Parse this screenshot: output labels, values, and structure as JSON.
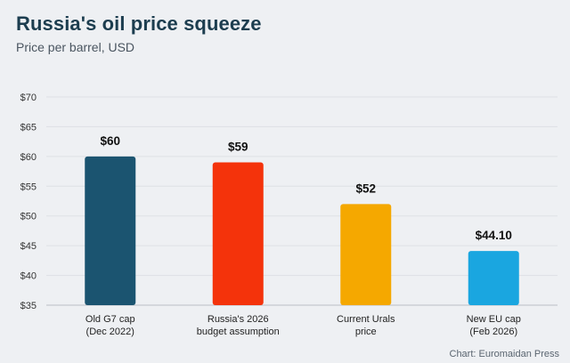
{
  "header": {
    "title": "Russia's oil price squeeze",
    "subtitle": "Price per barrel, USD"
  },
  "footer": {
    "source": "Chart: Euromaidan Press"
  },
  "chart_data": {
    "type": "bar",
    "title": "Russia's oil price squeeze",
    "subtitle": "Price per barrel, USD",
    "categories": [
      [
        "Old G7 cap",
        "(Dec 2022)"
      ],
      [
        "Russia's 2026",
        "budget assumption"
      ],
      [
        "Current Urals",
        "price"
      ],
      [
        "New EU cap",
        "(Feb 2026)"
      ]
    ],
    "values": [
      60,
      59,
      52,
      44.1
    ],
    "value_labels": [
      "$60",
      "$59",
      "$52",
      "$44.10"
    ],
    "bar_colors": [
      "#1b5470",
      "#f4330b",
      "#f5a800",
      "#1aa6e0"
    ],
    "ylim": [
      35,
      70
    ],
    "yticks": [
      35,
      40,
      45,
      50,
      55,
      60,
      65,
      70
    ],
    "ytick_labels": [
      "$35",
      "$40",
      "$45",
      "$50",
      "$55",
      "$60",
      "$65",
      "$70"
    ],
    "grid": true,
    "legend": "none"
  }
}
